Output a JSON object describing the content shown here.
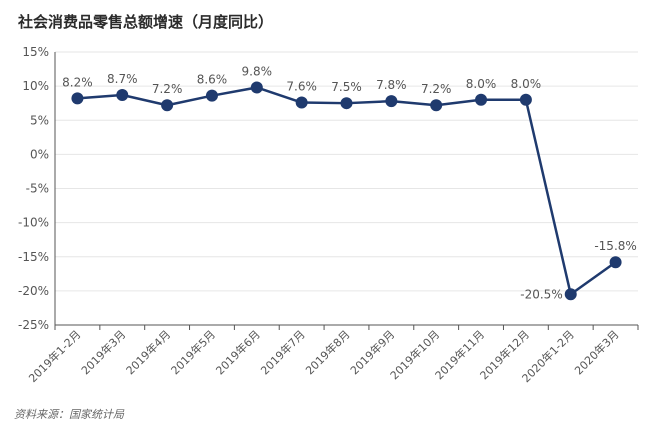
{
  "chart_data": {
    "type": "line",
    "title": "社会消费品零售总额增速（月度同比）",
    "categories": [
      "2019年1-2月",
      "2019年3月",
      "2019年4月",
      "2019年5月",
      "2019年6月",
      "2019年7月",
      "2019年8月",
      "2019年9月",
      "2019年10月",
      "2019年11月",
      "2019年12月",
      "2020年1-2月",
      "2020年3月"
    ],
    "series": [
      {
        "values": [
          8.2,
          8.7,
          7.2,
          8.6,
          9.8,
          7.6,
          7.5,
          7.8,
          7.2,
          8.0,
          8.0,
          -20.5,
          -15.8
        ]
      }
    ],
    "data_labels": [
      "8.2%",
      "8.7%",
      "7.2%",
      "8.6%",
      "9.8%",
      "7.6%",
      "7.5%",
      "7.8%",
      "7.2%",
      "8.0%",
      "8.0%",
      "-20.5%",
      "-15.8%"
    ],
    "y_ticks": [
      15,
      10,
      5,
      0,
      -5,
      -10,
      -15,
      -20,
      -25
    ],
    "y_tick_labels": [
      "15%",
      "10%",
      "5%",
      "0%",
      "-5%",
      "-10%",
      "-15%",
      "-20%",
      "-25%"
    ],
    "ylim": [
      -25,
      15
    ],
    "grid": true,
    "line_color": "#1f3a6e",
    "source": "资料来源：国家统计局"
  }
}
